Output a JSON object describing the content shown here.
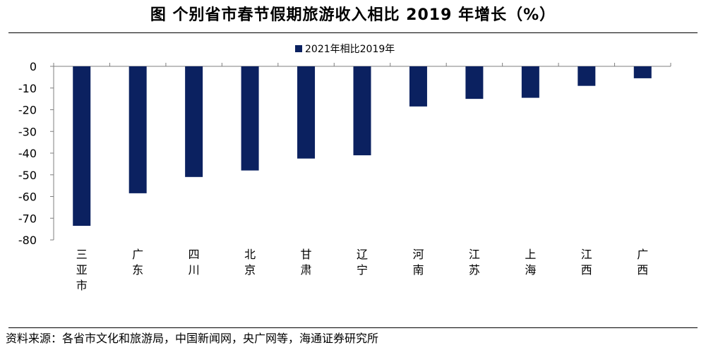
{
  "page": {
    "title": "图  个别省市春节假期旅游收入相比 2019 年增长（%）",
    "source": "资料来源：各省市文化和旅游局，中国新闻网，央广网等，海通证券研究所"
  },
  "chart_data": {
    "type": "bar",
    "title": "图  个别省市春节假期旅游收入相比 2019 年增长（%）",
    "categories": [
      "三亚市",
      "广东",
      "四川",
      "北京",
      "甘肃",
      "辽宁",
      "河南",
      "江苏",
      "上海",
      "江西",
      "广西"
    ],
    "series": [
      {
        "name": "2021年相比2019年",
        "color": "#0b2160",
        "values": [
          -73.5,
          -58.5,
          -51.0,
          -48.0,
          -42.5,
          -41.0,
          -18.5,
          -15.0,
          -14.5,
          -9.0,
          -5.5
        ]
      }
    ],
    "ylim": [
      -80,
      0
    ],
    "yticks": [
      0,
      -10,
      -20,
      -30,
      -40,
      -50,
      -60,
      -70,
      -80
    ],
    "legend": "top-center",
    "grid": false,
    "category_label_orientation": "vertical"
  }
}
